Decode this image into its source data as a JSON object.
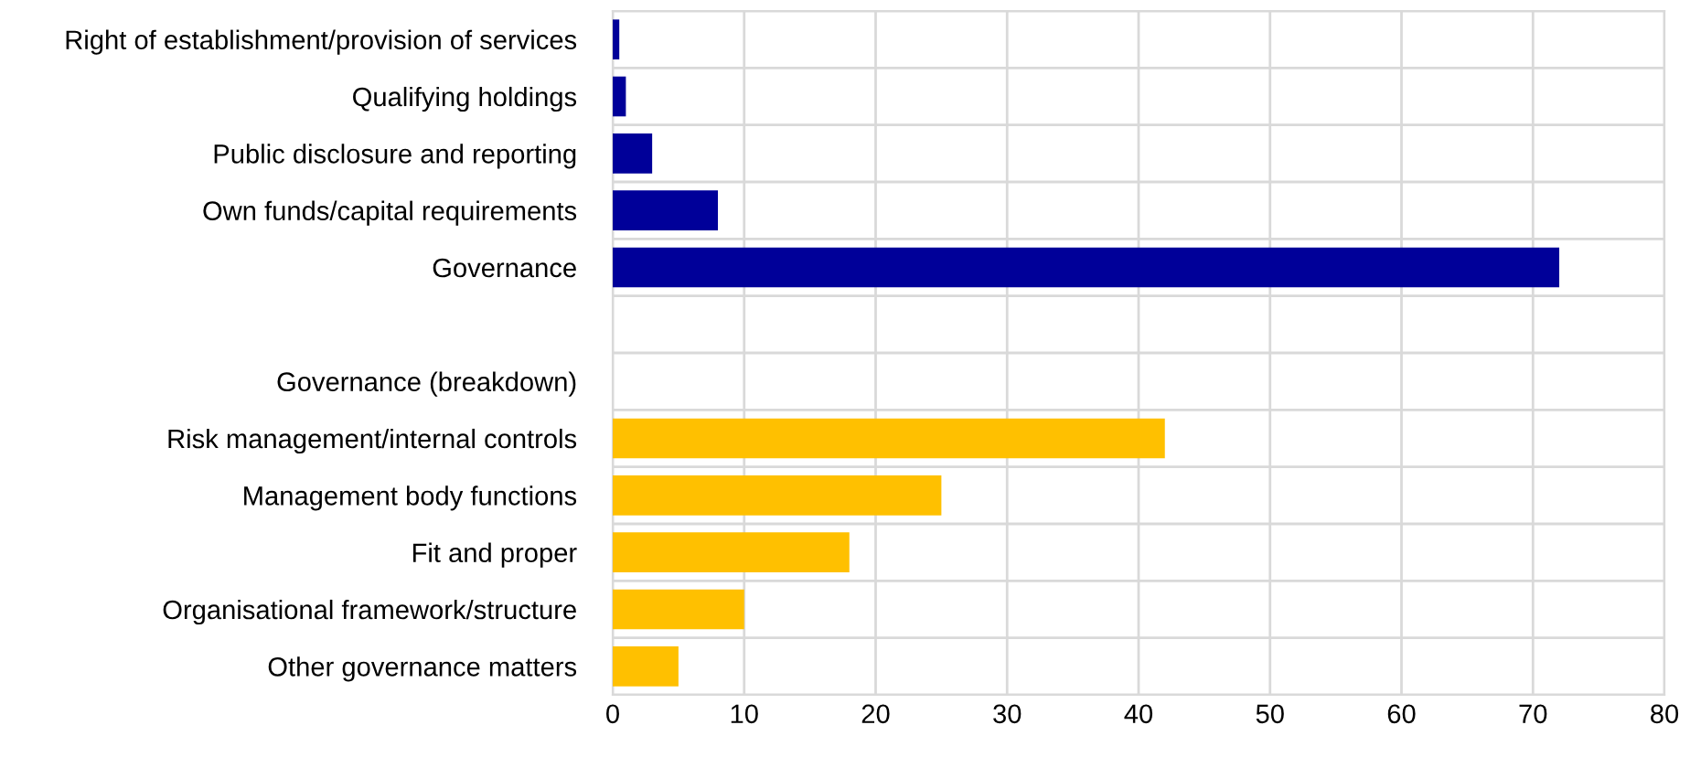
{
  "chart_data": {
    "type": "bar",
    "orientation": "horizontal",
    "categories": [
      "Right of establishment/provision of services",
      "Qualifying holdings",
      "Public disclosure and reporting",
      "Own funds/capital requirements",
      "Governance",
      null,
      "Governance (breakdown)",
      "Risk management/internal controls",
      "Management body functions",
      "Fit and proper",
      "Organisational framework/structure",
      "Other governance matters"
    ],
    "values": [
      0.5,
      1,
      3,
      8,
      72,
      null,
      null,
      42,
      25,
      18,
      10,
      5
    ],
    "colors": [
      "#000099",
      "#000099",
      "#000099",
      "#000099",
      "#000099",
      null,
      null,
      "#ffc000",
      "#ffc000",
      "#ffc000",
      "#ffc000",
      "#ffc000"
    ],
    "xlim": [
      0,
      80
    ],
    "xticks": [
      0,
      10,
      20,
      30,
      40,
      50,
      60,
      70,
      80
    ],
    "grid": true
  }
}
